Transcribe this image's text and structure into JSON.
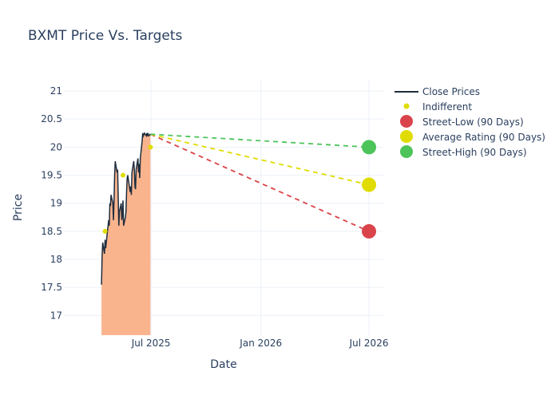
{
  "chart_data": {
    "type": "line",
    "title": "BXMT Price Vs. Targets",
    "xlabel": "Date",
    "ylabel": "Price",
    "xlim": [
      "2025-02-05",
      "2026-07-25"
    ],
    "ylim": [
      16.65,
      21.2
    ],
    "x_ticks": [
      {
        "date": "2025-07-01",
        "label": "Jul 2025"
      },
      {
        "date": "2026-01-01",
        "label": "Jan 2026"
      },
      {
        "date": "2026-07-01",
        "label": "Jul 2026"
      }
    ],
    "y_ticks": [
      {
        "value": 17,
        "label": "17"
      },
      {
        "value": 17.5,
        "label": "17.5"
      },
      {
        "value": 18,
        "label": "18"
      },
      {
        "value": 18.5,
        "label": "18.5"
      },
      {
        "value": 19,
        "label": "19"
      },
      {
        "value": 19.5,
        "label": "19.5"
      },
      {
        "value": 20,
        "label": "20"
      },
      {
        "value": 20.5,
        "label": "20.5"
      },
      {
        "value": 21,
        "label": "21"
      }
    ],
    "grid": true,
    "legend_position": "right",
    "close_prices": {
      "name": "Close Prices",
      "color": "#1f2d3d",
      "fill_color": "#f9b48e",
      "dates": [
        "2025-04-09",
        "2025-04-10",
        "2025-04-11",
        "2025-04-14",
        "2025-04-15",
        "2025-04-16",
        "2025-04-17",
        "2025-04-21",
        "2025-04-22",
        "2025-04-23",
        "2025-04-24",
        "2025-04-25",
        "2025-04-28",
        "2025-04-29",
        "2025-04-30",
        "2025-05-01",
        "2025-05-02",
        "2025-05-05",
        "2025-05-06",
        "2025-05-07",
        "2025-05-08",
        "2025-05-09",
        "2025-05-12",
        "2025-05-13",
        "2025-05-14",
        "2025-05-15",
        "2025-05-16",
        "2025-05-19",
        "2025-05-20",
        "2025-05-21",
        "2025-05-22",
        "2025-05-23",
        "2025-05-27",
        "2025-05-28",
        "2025-05-29",
        "2025-05-30",
        "2025-06-02",
        "2025-06-03",
        "2025-06-04",
        "2025-06-05",
        "2025-06-06",
        "2025-06-09",
        "2025-06-10",
        "2025-06-11",
        "2025-06-12",
        "2025-06-13",
        "2025-06-16",
        "2025-06-17",
        "2025-06-18",
        "2025-06-20",
        "2025-06-23",
        "2025-06-24",
        "2025-06-25",
        "2025-06-26",
        "2025-06-27",
        "2025-06-30"
      ],
      "values": [
        17.55,
        18.05,
        18.3,
        18.1,
        18.35,
        18.2,
        18.3,
        18.7,
        18.6,
        19.0,
        18.95,
        19.15,
        19.0,
        18.7,
        19.05,
        19.5,
        19.75,
        19.55,
        19.6,
        19.1,
        18.6,
        18.85,
        19.0,
        18.7,
        18.8,
        19.05,
        18.6,
        18.75,
        18.85,
        19.2,
        19.45,
        19.5,
        19.2,
        19.3,
        19.15,
        19.55,
        19.75,
        19.6,
        19.3,
        19.25,
        19.6,
        19.8,
        19.55,
        19.7,
        19.45,
        19.8,
        20.1,
        20.25,
        20.2,
        20.25,
        20.2,
        20.25,
        20.2,
        20.25,
        20.2,
        20.23
      ]
    },
    "ratings": {
      "name": "Indifferent",
      "color": "#e0dc00",
      "points": [
        {
          "date": "2025-04-15",
          "value": 18.5
        },
        {
          "date": "2025-05-15",
          "value": 19.5
        },
        {
          "date": "2025-06-30",
          "value": 20.0
        }
      ]
    },
    "targets": {
      "start_date": "2025-06-30",
      "start_value": 20.23,
      "end_date": "2026-07-01",
      "series": [
        {
          "name": "Street-Low (90 Days)",
          "value": 18.5,
          "color": "#d9434a"
        },
        {
          "name": "Average Rating (90 Days)",
          "value": 19.33,
          "color": "#e0dc00"
        },
        {
          "name": "Street-High (90 Days)",
          "value": 20.0,
          "color": "#4cc45a"
        }
      ]
    }
  }
}
